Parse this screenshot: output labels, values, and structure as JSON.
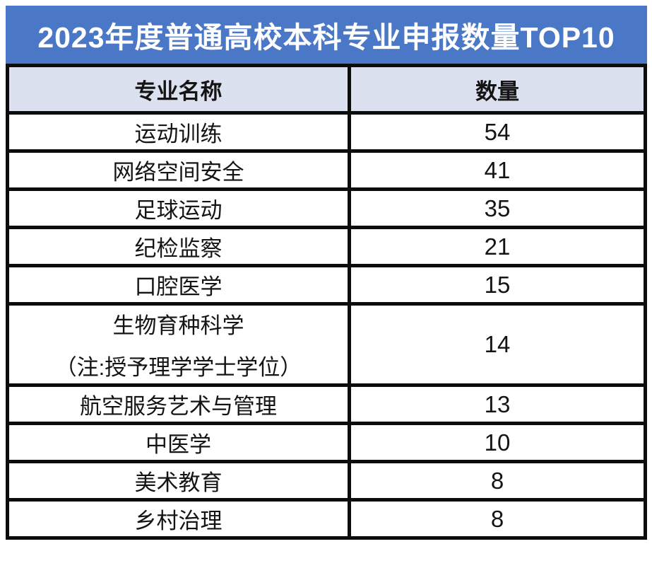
{
  "title": "2023年度普通高校本科专业申报数量TOP10",
  "table": {
    "headers": [
      "专业名称",
      "数量"
    ],
    "rows": [
      {
        "major": "运动训练",
        "count": "54"
      },
      {
        "major": "网络空间安全",
        "count": "41"
      },
      {
        "major": "足球运动",
        "count": "35"
      },
      {
        "major": "纪检监察",
        "count": "21"
      },
      {
        "major": "口腔医学",
        "count": "15"
      },
      {
        "major": "生物育种科学",
        "note": "（注:授予理学学士学位）",
        "count": "14"
      },
      {
        "major": "航空服务艺术与管理",
        "count": "13"
      },
      {
        "major": "中医学",
        "count": "10"
      },
      {
        "major": "美术教育",
        "count": "8"
      },
      {
        "major": "乡村治理",
        "count": "8"
      }
    ]
  },
  "colors": {
    "title_bg": "#4a77c6",
    "title_text": "#ffffff",
    "header_bg": "#dce1f0",
    "border": "#0c0c0c",
    "cell_text": "#141414",
    "row_bg": "#ffffff"
  },
  "chart_data": {
    "type": "table",
    "title": "2023年度普通高校本科专业申报数量TOP10",
    "columns": [
      "专业名称",
      "数量"
    ],
    "rows": [
      [
        "运动训练",
        54
      ],
      [
        "网络空间安全",
        41
      ],
      [
        "足球运动",
        35
      ],
      [
        "纪检监察",
        21
      ],
      [
        "口腔医学",
        15
      ],
      [
        "生物育种科学（注:授予理学学士学位）",
        14
      ],
      [
        "航空服务艺术与管理",
        13
      ],
      [
        "中医学",
        10
      ],
      [
        "美术教育",
        8
      ],
      [
        "乡村治理",
        8
      ]
    ]
  }
}
